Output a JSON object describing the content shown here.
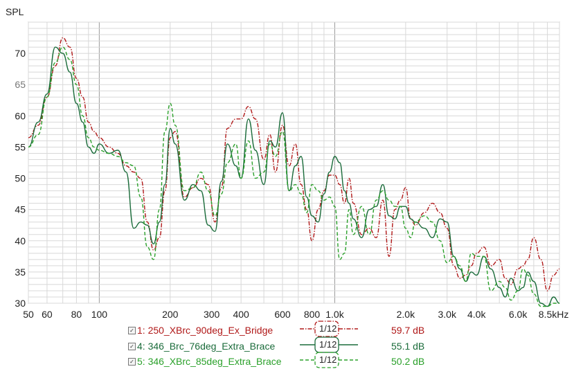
{
  "colors": {
    "series1": "#b01818",
    "series2": "#1a6b3a",
    "series3": "#2aa02a",
    "grid": "#d8d8d8",
    "grid_major": "#9a9a9a",
    "frame": "#888888",
    "plot_bg": "#ffffff"
  },
  "chart_data": {
    "type": "line",
    "ylabel": "SPL",
    "x_scale": "log",
    "xlim": [
      50,
      9000
    ],
    "ylim": [
      30,
      75
    ],
    "x_ticks": [
      50,
      60,
      80,
      100,
      200,
      300,
      400,
      600,
      800,
      1000,
      2000,
      3000,
      4000,
      6000,
      8500
    ],
    "x_tick_labels": [
      "50",
      "60",
      "80",
      "100",
      "200",
      "300",
      "400",
      "600",
      "800",
      "1.0k",
      "2.0k",
      "3.0k",
      "4.0k",
      "6.0k",
      "8.5kHz"
    ],
    "y_ticks": [
      30,
      35,
      40,
      45,
      50,
      55,
      60,
      65,
      70
    ],
    "y_tick_labels": [
      "30",
      "35",
      "40",
      "45",
      "50",
      "55",
      "60",
      "65",
      "70"
    ],
    "grid": true,
    "legend_position": "bottom",
    "series": [
      {
        "name": "1: 250_XBrc_90deg_Ex_Bridge",
        "smoothing": "1/12",
        "value_label": "59.7 dB",
        "style": "dash-dot",
        "color_key": "series1",
        "x": [
          50,
          55,
          60,
          65,
          70,
          75,
          80,
          85,
          90,
          95,
          100,
          110,
          120,
          130,
          140,
          150,
          160,
          170,
          180,
          190,
          200,
          210,
          230,
          250,
          270,
          290,
          310,
          330,
          350,
          380,
          400,
          430,
          460,
          500,
          530,
          560,
          600,
          640,
          680,
          720,
          760,
          800,
          850,
          900,
          950,
          1000,
          1050,
          1100,
          1150,
          1200,
          1300,
          1400,
          1500,
          1600,
          1700,
          1800,
          1900,
          2000,
          2100,
          2200,
          2400,
          2600,
          2800,
          3000,
          3200,
          3400,
          3600,
          3800,
          4000,
          4300,
          4600,
          5000,
          5300,
          5600,
          6000,
          6300,
          6600,
          7000,
          7500,
          8000,
          8500,
          9000
        ],
        "y": [
          56.5,
          58.5,
          63,
          68,
          72.5,
          71,
          66,
          63,
          59,
          57.5,
          56.5,
          55,
          54,
          52,
          51,
          50,
          43,
          38.5,
          40.5,
          48,
          56.5,
          57.5,
          47,
          48.5,
          50,
          49,
          43,
          48.5,
          58,
          59.5,
          59.5,
          61.5,
          59.5,
          53,
          57,
          51,
          58.5,
          52,
          55.5,
          49,
          45,
          40,
          45,
          48,
          50.5,
          50.5,
          49,
          46,
          50,
          46,
          41,
          42,
          40.5,
          46.5,
          37.5,
          45,
          46.5,
          48.5,
          43.5,
          42.5,
          44.5,
          46,
          44.5,
          42,
          36,
          34,
          34.5,
          36,
          38,
          39,
          36,
          37,
          34,
          33,
          35.5,
          36,
          37,
          40.5,
          37,
          32,
          34.5,
          35.5
        ]
      },
      {
        "name": "4: 346_Brc_76deg_Extra_Brace",
        "smoothing": "1/12",
        "value_label": "55.1 dB",
        "style": "solid",
        "color_key": "series2",
        "x": [
          50,
          55,
          60,
          65,
          70,
          75,
          80,
          85,
          90,
          95,
          100,
          110,
          120,
          130,
          140,
          150,
          160,
          170,
          180,
          190,
          200,
          210,
          230,
          250,
          270,
          290,
          310,
          330,
          350,
          380,
          400,
          430,
          460,
          500,
          530,
          560,
          600,
          640,
          680,
          720,
          760,
          800,
          850,
          900,
          950,
          1000,
          1050,
          1100,
          1150,
          1200,
          1300,
          1400,
          1500,
          1600,
          1700,
          1800,
          1900,
          2000,
          2100,
          2200,
          2400,
          2600,
          2800,
          3000,
          3200,
          3400,
          3600,
          3800,
          4000,
          4300,
          4600,
          5000,
          5300,
          5600,
          6000,
          6300,
          6600,
          7000,
          7500,
          8000,
          8500,
          9000
        ],
        "y": [
          55,
          59,
          63.5,
          71,
          70,
          67,
          62,
          59,
          55,
          54,
          55.5,
          54,
          54.5,
          51,
          42,
          43,
          42.5,
          39.5,
          43,
          49,
          58,
          55.5,
          46.5,
          49,
          48,
          42.5,
          41.5,
          49.5,
          55.5,
          52,
          50,
          59.5,
          54.5,
          49,
          56,
          55,
          60.5,
          48,
          52,
          53.5,
          47,
          44,
          43,
          47.5,
          51,
          53.5,
          52.5,
          48,
          46,
          43.5,
          40.5,
          45,
          45.5,
          49,
          44,
          43.5,
          45.5,
          45.5,
          43.5,
          43,
          42,
          40.5,
          43.5,
          43,
          37.5,
          35.5,
          33.5,
          35,
          34.5,
          37.5,
          35.5,
          32.5,
          31,
          34,
          32,
          32.5,
          35,
          33.5,
          30,
          29.5,
          31,
          30
        ]
      },
      {
        "name": "5: 346_XBrc_85deg_Extra_Brace",
        "smoothing": "1/12",
        "value_label": "50.2 dB",
        "style": "dashed",
        "color_key": "series3",
        "x": [
          50,
          55,
          60,
          65,
          70,
          75,
          80,
          85,
          90,
          95,
          100,
          110,
          120,
          130,
          140,
          150,
          160,
          170,
          180,
          190,
          200,
          210,
          230,
          250,
          270,
          290,
          310,
          330,
          350,
          380,
          400,
          430,
          460,
          500,
          530,
          560,
          600,
          640,
          680,
          720,
          760,
          800,
          850,
          900,
          950,
          1000,
          1050,
          1100,
          1150,
          1200,
          1300,
          1400,
          1500,
          1600,
          1700,
          1800,
          1900,
          2000,
          2100,
          2200,
          2400,
          2600,
          2800,
          3000,
          3200,
          3400,
          3600,
          3800,
          4000,
          4300,
          4600,
          5000,
          5300,
          5600,
          6000,
          6300,
          6600,
          7000,
          7500,
          8000,
          8500,
          9000
        ],
        "y": [
          55,
          57,
          63,
          68.5,
          71,
          69,
          65,
          60,
          56.5,
          55,
          54.5,
          54,
          53.5,
          52.5,
          52,
          47,
          39,
          37,
          45,
          57.5,
          62,
          58.5,
          48,
          48.5,
          51,
          48,
          44,
          47.5,
          52.5,
          55.5,
          50,
          56,
          50,
          51,
          55.5,
          53.5,
          57.5,
          48,
          49,
          47.5,
          44.5,
          49,
          48,
          46.5,
          47,
          45.5,
          37,
          38,
          45,
          41,
          45.5,
          41,
          46.5,
          48,
          46.5,
          45.5,
          45.5,
          42,
          40.5,
          43,
          44,
          43,
          40,
          36.5,
          37.5,
          36,
          33.5,
          38,
          37.5,
          37.5,
          32,
          33.5,
          32.5,
          30.5,
          32,
          35.5,
          34.5,
          31.5,
          29.5,
          29.5,
          30,
          30
        ]
      }
    ]
  }
}
